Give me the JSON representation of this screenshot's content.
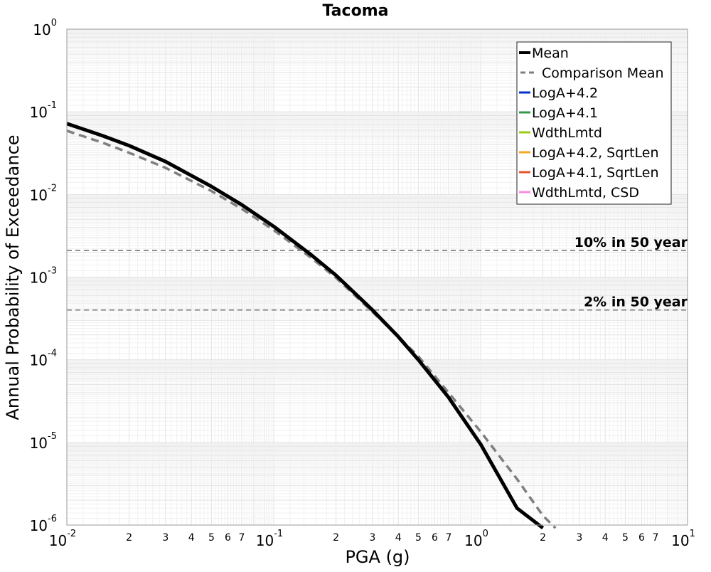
{
  "chart_data": {
    "type": "line",
    "title": "Tacoma",
    "xlabel": "PGA (g)",
    "ylabel": "Annual Probability of Exceedance",
    "xscale": "log",
    "yscale": "log",
    "xlim": [
      0.01,
      10
    ],
    "ylim": [
      1e-06,
      1
    ],
    "grid": true,
    "legend_position": "top-right",
    "x_ticks": [
      {
        "base": "10",
        "exp": "-2",
        "value": 0.01
      },
      {
        "base": "10",
        "exp": "-1",
        "value": 0.1
      },
      {
        "base": "10",
        "exp": "0",
        "value": 1
      },
      {
        "base": "10",
        "exp": "1",
        "value": 10
      }
    ],
    "x_minor_tick_labels": [
      "2",
      "3",
      "4",
      "5",
      "6",
      "7"
    ],
    "y_ticks": [
      {
        "base": "10",
        "exp": "0",
        "value": 1
      },
      {
        "base": "10",
        "exp": "-1",
        "value": 0.1
      },
      {
        "base": "10",
        "exp": "-2",
        "value": 0.01
      },
      {
        "base": "10",
        "exp": "-3",
        "value": 0.001
      },
      {
        "base": "10",
        "exp": "-4",
        "value": 0.0001
      },
      {
        "base": "10",
        "exp": "-5",
        "value": 1e-05
      },
      {
        "base": "10",
        "exp": "-6",
        "value": 1e-06
      }
    ],
    "reference_lines": [
      {
        "label": "10% in 50 year",
        "y": 0.0021
      },
      {
        "label": "2% in 50 year",
        "y": 0.0004
      }
    ],
    "series": [
      {
        "name": "Mean",
        "color": "#000000",
        "style": "solid",
        "x": [
          0.01,
          0.015,
          0.02,
          0.03,
          0.05,
          0.07,
          0.1,
          0.15,
          0.2,
          0.3,
          0.4,
          0.5,
          0.7,
          1.0,
          1.5,
          2.0
        ],
        "y": [
          0.072,
          0.051,
          0.039,
          0.025,
          0.0125,
          0.0075,
          0.0041,
          0.0019,
          0.00105,
          0.0004,
          0.00019,
          0.0001,
          3.5e-05,
          9.5e-06,
          1.6e-06,
          9.2e-07
        ]
      },
      {
        "name": "Comparison Mean",
        "color": "#7f7f7f",
        "style": "dashed",
        "x": [
          0.01,
          0.015,
          0.02,
          0.03,
          0.05,
          0.07,
          0.1,
          0.15,
          0.2,
          0.3,
          0.4,
          0.5,
          0.7,
          1.0,
          1.5,
          2.0,
          2.3
        ],
        "y": [
          0.059,
          0.042,
          0.032,
          0.021,
          0.011,
          0.0067,
          0.0037,
          0.00175,
          0.00098,
          0.00038,
          0.00019,
          0.00011,
          4e-05,
          1.35e-05,
          3.6e-06,
          1.3e-06,
          9.2e-07
        ]
      },
      {
        "name": "LogA+4.2",
        "color": "#0033cc",
        "style": "solid"
      },
      {
        "name": "LogA+4.1",
        "color": "#339944",
        "style": "solid"
      },
      {
        "name": "WdthLmtd",
        "color": "#99cc11",
        "style": "solid"
      },
      {
        "name": "LogA+4.2, SqrtLen",
        "color": "#f5a623",
        "style": "solid",
        "x": [
          0.1,
          0.15,
          0.2,
          0.3,
          0.4
        ],
        "y": [
          0.0042,
          0.00195,
          0.00108,
          0.00041,
          0.00019
        ]
      },
      {
        "name": "LogA+4.1, SqrtLen",
        "color": "#e8532a",
        "style": "solid"
      },
      {
        "name": "WdthLmtd, CSD",
        "color": "#ff88dd",
        "style": "solid"
      }
    ]
  }
}
